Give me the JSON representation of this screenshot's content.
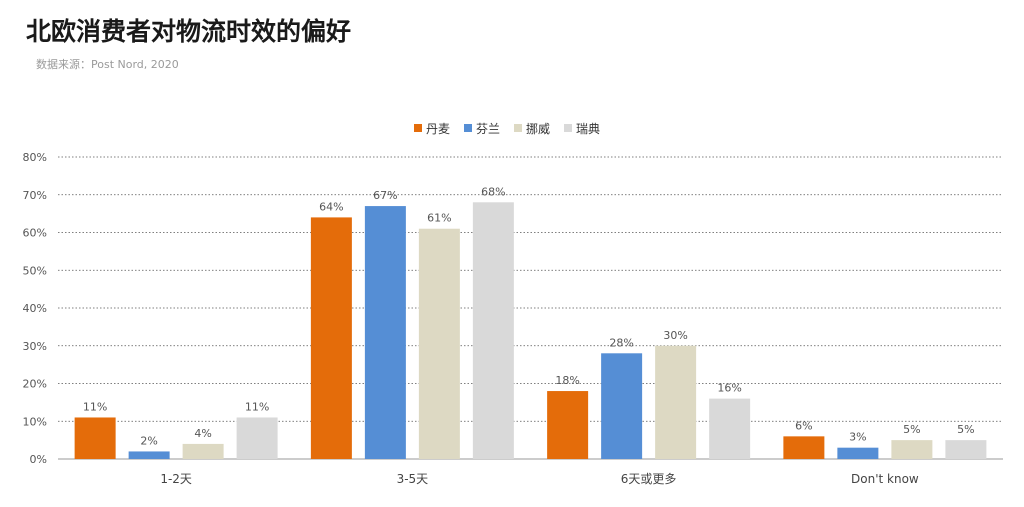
{
  "header": {
    "title": "北欧消费者对物流时效的偏好",
    "subtitle": "数据来源：Post Nord, 2020"
  },
  "chart_data": {
    "type": "bar",
    "title": "北欧消费者对物流时效的偏好",
    "subtitle": "数据来源：Post Nord, 2020",
    "categories": [
      "1-2天",
      "3-5天",
      "6天或更多",
      "Don't know"
    ],
    "series": [
      {
        "name": "丹麦",
        "color": "#e46c0a",
        "values": [
          11,
          64,
          18,
          6
        ]
      },
      {
        "name": "芬兰",
        "color": "#558ed5",
        "values": [
          2,
          67,
          28,
          3
        ]
      },
      {
        "name": "挪威",
        "color": "#ddd9c3",
        "values": [
          4,
          61,
          30,
          5
        ]
      },
      {
        "name": "瑞典",
        "color": "#d9d9d9",
        "values": [
          11,
          68,
          16,
          5
        ]
      }
    ],
    "y_ticks": [
      "0%",
      "10%",
      "20%",
      "30%",
      "40%",
      "50%",
      "60%",
      "70%",
      "80%"
    ],
    "ylim": [
      0,
      80
    ],
    "y_unit": "%",
    "grid": true,
    "grid_style": "dotted",
    "legend_position": "top-center"
  }
}
